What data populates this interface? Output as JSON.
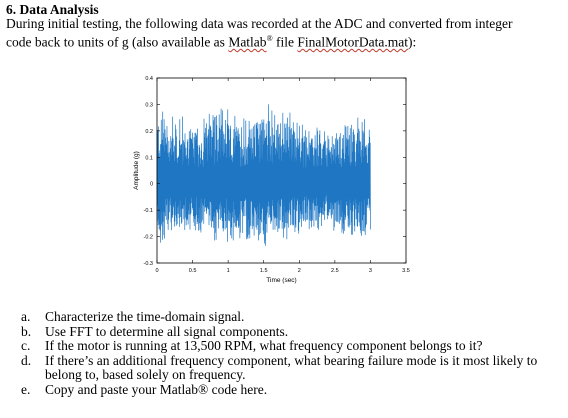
{
  "heading": "6.  Data Analysis",
  "intro": {
    "line1": "During initial testing, the following data was recorded at the ADC and converted from integer",
    "line2_before": "code back to units of g (also available as ",
    "matlab": "Matlab",
    "reg_mark": "®",
    "file_word": " file ",
    "file_name": "FinalMotorData.mat",
    "line2_after": "):"
  },
  "chart_data": {
    "type": "line",
    "title": "",
    "xlabel": "Time (sec)",
    "ylabel": "Amplitude (g)",
    "xlim": [
      0,
      3.5
    ],
    "ylim": [
      -0.3,
      0.4
    ],
    "xticks": [
      0,
      0.5,
      1,
      1.5,
      2,
      2.5,
      3,
      3.5
    ],
    "xtick_labels": [
      "0",
      "0.5",
      "1",
      "1.5",
      "2",
      "2.5",
      "3",
      "3.5"
    ],
    "yticks": [
      -0.3,
      -0.2,
      -0.1,
      0,
      0.1,
      0.2,
      0.3,
      0.4
    ],
    "ytick_labels": [
      "-0.3",
      "-0.2",
      "-0.1",
      "0",
      "0.1",
      "0.2",
      "0.3",
      "0.4"
    ],
    "grid": false,
    "legend": "none",
    "series_color": "#1f77c4",
    "signal": {
      "t_start": 0,
      "t_end": 3.0,
      "samples": 900,
      "amplitude_envelope": [
        {
          "t": 0.0,
          "max": 0.32,
          "min": -0.24
        },
        {
          "t": 0.3,
          "max": 0.26,
          "min": -0.2
        },
        {
          "t": 0.6,
          "max": 0.24,
          "min": -0.19
        },
        {
          "t": 0.9,
          "max": 0.3,
          "min": -0.23
        },
        {
          "t": 1.2,
          "max": 0.25,
          "min": -0.21
        },
        {
          "t": 1.5,
          "max": 0.31,
          "min": -0.24
        },
        {
          "t": 1.8,
          "max": 0.29,
          "min": -0.22
        },
        {
          "t": 2.1,
          "max": 0.22,
          "min": -0.18
        },
        {
          "t": 2.4,
          "max": 0.21,
          "min": -0.17
        },
        {
          "t": 2.7,
          "max": 0.24,
          "min": -0.2
        },
        {
          "t": 3.0,
          "max": 0.27,
          "min": -0.22
        }
      ]
    }
  },
  "questions": [
    {
      "letter": "a.",
      "text": "Characterize the time-domain signal."
    },
    {
      "letter": "b.",
      "text": "Use FFT to determine all signal components."
    },
    {
      "letter": "c.",
      "text": "If the motor is running at 13,500 RPM, what frequency component belongs to it?"
    },
    {
      "letter": "d.",
      "text": "If there’s an additional frequency component, what bearing failure mode is it most likely to belong to, based solely on frequency."
    },
    {
      "letter": "e.",
      "text": "Copy and paste your Matlab® code here."
    }
  ]
}
